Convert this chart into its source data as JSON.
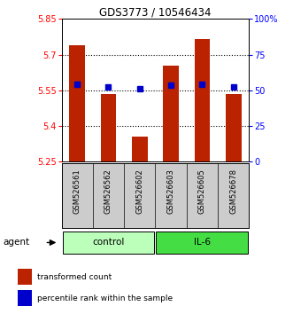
{
  "title": "GDS3773 / 10546434",
  "samples": [
    "GSM526561",
    "GSM526562",
    "GSM526602",
    "GSM526603",
    "GSM526605",
    "GSM526678"
  ],
  "groups": [
    "control",
    "control",
    "control",
    "IL-6",
    "IL-6",
    "IL-6"
  ],
  "red_values": [
    5.74,
    5.535,
    5.355,
    5.655,
    5.765,
    5.535
  ],
  "blue_values": [
    5.575,
    5.565,
    5.555,
    5.57,
    5.575,
    5.565
  ],
  "ylim_left": [
    5.25,
    5.85
  ],
  "ylim_right": [
    0,
    100
  ],
  "yticks_left": [
    5.25,
    5.4,
    5.55,
    5.7,
    5.85
  ],
  "yticks_right": [
    0,
    25,
    50,
    75,
    100
  ],
  "ytick_labels_left": [
    "5.25",
    "5.4",
    "5.55",
    "5.7",
    "5.85"
  ],
  "ytick_labels_right": [
    "0",
    "25",
    "50",
    "75",
    "100%"
  ],
  "hlines": [
    5.4,
    5.55,
    5.7
  ],
  "red_color": "#bb2200",
  "blue_color": "#0000cc",
  "bar_width": 0.5,
  "control_color": "#bbffbb",
  "il6_color": "#44dd44",
  "sample_bg_color": "#cccccc",
  "agent_label": "agent",
  "control_label": "control",
  "il6_label": "IL-6",
  "legend_red": "transformed count",
  "legend_blue": "percentile rank within the sample",
  "background_color": "#ffffff"
}
